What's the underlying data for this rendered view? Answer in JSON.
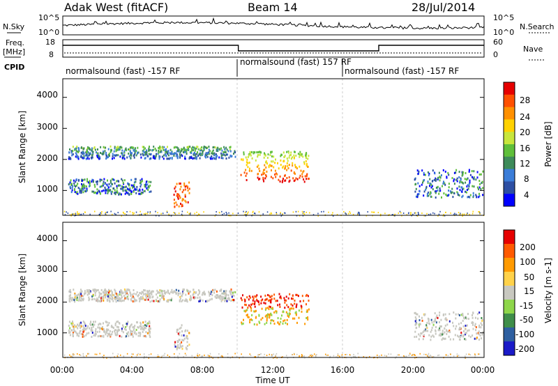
{
  "chart_data": {
    "type": "heatmap",
    "header": {
      "station": "Adak West (fitACF)",
      "beam": "Beam 14",
      "date": "28/Jul/2014"
    },
    "time_axis": {
      "label": "Time UT",
      "ticks": [
        "00:00",
        "04:00",
        "08:00",
        "12:00",
        "16:00",
        "20:00",
        "00:00"
      ],
      "range_hours": [
        0,
        24
      ]
    },
    "noise_panel": {
      "left_label": "N.Sky",
      "right_label": "N.Search",
      "left_ticks": [
        "10^5",
        "10^0"
      ],
      "right_ticks": [
        "10^5",
        "10^0"
      ]
    },
    "freq_panel": {
      "left_label_1": "Freq.",
      "left_label_2": "[MHz]",
      "right_label": "Nave",
      "left_ticks": [
        "18",
        "8"
      ],
      "right_ticks": [
        "60",
        "0"
      ],
      "freq_steps": [
        {
          "start_hour": 0,
          "end_hour": 10,
          "level": "high"
        },
        {
          "start_hour": 10,
          "end_hour": 18,
          "level": "low"
        },
        {
          "start_hour": 18,
          "end_hour": 24,
          "level": "high"
        }
      ]
    },
    "cpid": {
      "label": "CPID",
      "segments": [
        {
          "start_hour": 0,
          "end_hour": 10,
          "text": "normalsound (fast) -157 RF"
        },
        {
          "start_hour": 10,
          "end_hour": 16,
          "text": "normalsound (fast) 157 RF"
        },
        {
          "start_hour": 16,
          "end_hour": 24,
          "text": "normalsound (fast) -157 RF"
        }
      ]
    },
    "power_panel": {
      "ylabel": "Slant Range [km]",
      "yticks": [
        1000,
        2000,
        3000,
        4000
      ],
      "ylim": [
        200,
        4600
      ],
      "colorbar_label": "Power [dB]",
      "colorbar_ticks": [
        "28",
        "24",
        "20",
        "16",
        "12",
        "8",
        "4"
      ],
      "colors": [
        "#0000ff",
        "#2d4fa3",
        "#3b7dd8",
        "#3e8b5a",
        "#5fbf3a",
        "#c8e63c",
        "#ffd200",
        "#ff9000",
        "#ff5000",
        "#e60000"
      ]
    },
    "velocity_panel": {
      "ylabel": "Slant Range [km]",
      "yticks": [
        1000,
        2000,
        3000,
        4000
      ],
      "ylim": [
        200,
        4600
      ],
      "colorbar_label": "Velocity [m s-1]",
      "colorbar_ticks": [
        "200",
        "100",
        "50",
        "15",
        "-15",
        "-50",
        "-100",
        "-200"
      ],
      "colors": [
        "#1a1ac8",
        "#2e5fa0",
        "#3f8e4a",
        "#8ed64a",
        "#c8c8c0",
        "#ffd24a",
        "#ff9a00",
        "#ff5a00",
        "#e60000"
      ]
    },
    "scatter_bands": [
      {
        "name": "upper",
        "start_hour": 0.3,
        "end_hour": 9.8,
        "range_km": [
          2050,
          2450
        ]
      },
      {
        "name": "middle",
        "start_hour": 10.1,
        "end_hour": 14.0,
        "range_km": [
          1300,
          2300
        ]
      },
      {
        "name": "lower-left",
        "start_hour": 0.3,
        "end_hour": 5.0,
        "range_km": [
          900,
          1400
        ]
      },
      {
        "name": "afternoon",
        "start_hour": 20.0,
        "end_hour": 23.9,
        "range_km": [
          800,
          1700
        ]
      },
      {
        "name": "outlier",
        "start_hour": 6.3,
        "end_hour": 7.2,
        "range_km": [
          500,
          1300
        ]
      }
    ]
  }
}
